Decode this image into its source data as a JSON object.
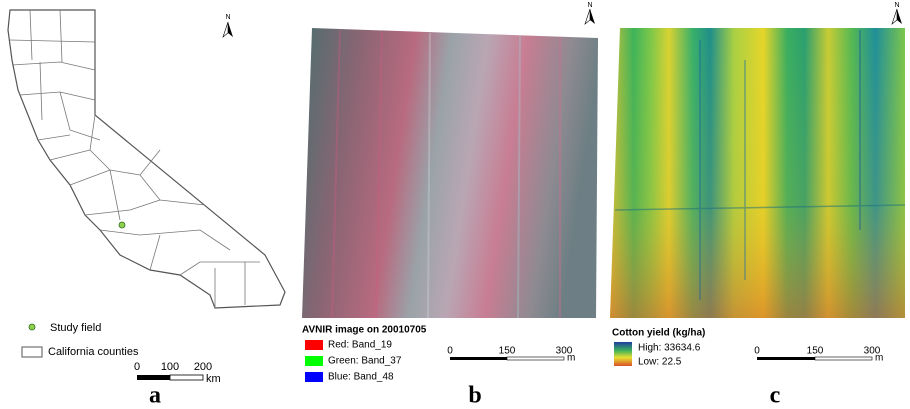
{
  "panels": [
    {
      "label": "a",
      "north": "N",
      "legend": [
        "Study field",
        "California counties"
      ],
      "scale": {
        "ticks": [
          "0",
          "100",
          "200"
        ],
        "unit": "km"
      }
    },
    {
      "label": "b",
      "north": "N",
      "legend_title": "AVNIR image on 20010705",
      "legend": [
        "Red:  Band_19",
        "Green: Band_37",
        "Blue:  Band_48"
      ],
      "scale": {
        "ticks": [
          "0",
          "150",
          "300"
        ],
        "unit": "m"
      }
    },
    {
      "label": "c",
      "north": "N",
      "legend_title": "Cotton yield (kg/ha)",
      "legend": [
        "High: 33634.6",
        "Low: 22.5"
      ],
      "scale": {
        "ticks": [
          "0",
          "150",
          "300"
        ],
        "unit": "m"
      }
    }
  ]
}
